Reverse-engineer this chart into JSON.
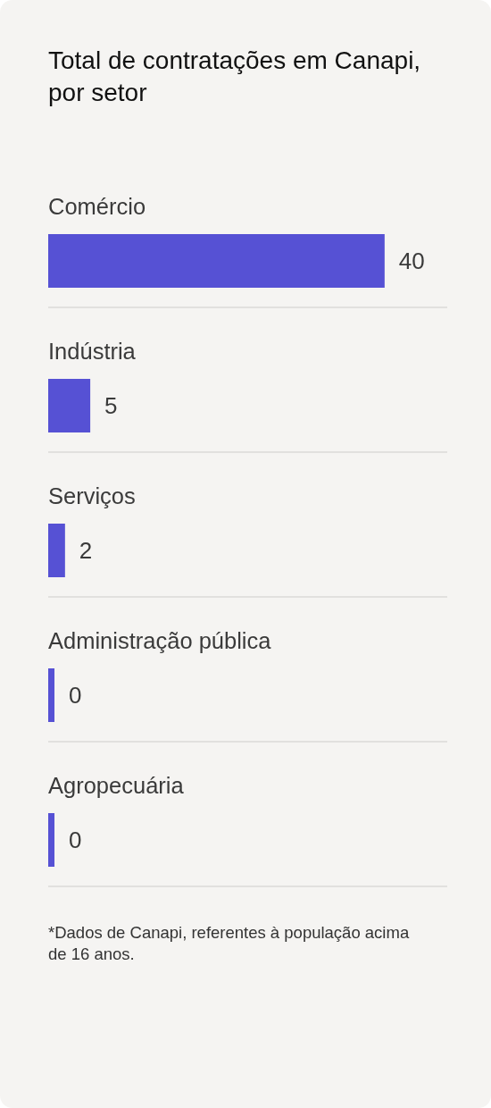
{
  "chart_data": {
    "type": "bar",
    "orientation": "horizontal",
    "title": "Total de contratações em Canapi, por setor",
    "categories": [
      "Comércio",
      "Indústria",
      "Serviços",
      "Administração pública",
      "Agropecuária"
    ],
    "values": [
      40,
      5,
      2,
      0,
      0
    ],
    "color": "#5651d4",
    "data_labels": true,
    "grid": "y",
    "annotations": [
      "*Dados de Canapi, referentes à população acima de 16 anos."
    ]
  }
}
